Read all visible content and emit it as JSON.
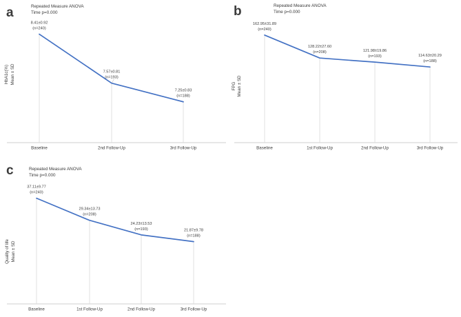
{
  "figure": {
    "description": "Repeated Measure ANOVA line charts",
    "colors": {
      "line": "#4472c4",
      "dropline": "#d9d9d9",
      "axis": "#bfbfbf",
      "text": "#3b3b3b",
      "letter": "#111111"
    }
  },
  "chart_data": [
    {
      "id": "a",
      "type": "line",
      "panel_letter": "a",
      "title": "Repeated Measure ANOVA",
      "subtitle": "Time p=0.000",
      "ylabel_lines": [
        "HbA1c(%)",
        "Mean ± SD"
      ],
      "categories": [
        "Baseline",
        "2nd Follow-Up",
        "3rd Follow-Up"
      ],
      "series": [
        {
          "name": "HbA1c(%) Mean",
          "values": [
            8.41,
            7.57,
            7.25
          ]
        }
      ],
      "sd_values": [
        0.92,
        0.81,
        0.83
      ],
      "n_values": [
        240,
        193,
        188
      ],
      "point_labels": [
        "8.41±0.92",
        "7.57±0.81",
        "7.25±0.83"
      ],
      "n_labels": [
        "(n=240)",
        "(n=193)",
        "(n=188)"
      ],
      "ylim": [
        6.55,
        8.7
      ],
      "grid": false,
      "legend": false
    },
    {
      "id": "b",
      "type": "line",
      "panel_letter": "b",
      "title": "Repeated Measure ANOVA",
      "subtitle": "Time p=0.000",
      "ylabel_lines": [
        "FPG",
        "Mean ± SD"
      ],
      "categories": [
        "Baseline",
        "1st Follow-Up",
        "2nd Follow-Up",
        "3rd Follow-Up"
      ],
      "series": [
        {
          "name": "FPG Mean",
          "values": [
            162.95,
            128.22,
            121.98,
            114.63
          ]
        }
      ],
      "sd_values": [
        31.89,
        27.6,
        19.86,
        20.29
      ],
      "n_values": [
        240,
        208,
        193,
        188
      ],
      "point_labels": [
        "162.95±31.89",
        "128.22±27.60",
        "121.98±19.86",
        "114.63±20.29"
      ],
      "n_labels": [
        "(n=240)",
        "(n=208)",
        "(n=193)",
        "(n=188)"
      ],
      "ylim": [
        0,
        190
      ],
      "grid": false,
      "legend": false
    },
    {
      "id": "c",
      "type": "line",
      "panel_letter": "c",
      "title": "Repeated Measure ANOVA",
      "subtitle": "Time p=0.000",
      "ylabel_lines": [
        "Quality of life",
        "Mean ± SD"
      ],
      "categories": [
        "Baseline",
        "1st Follow-Up",
        "2nd Follow-Up",
        "3rd Follow-Up"
      ],
      "series": [
        {
          "name": "Quality of life Mean",
          "values": [
            37.11,
            29.34,
            24.23,
            21.87
          ]
        }
      ],
      "sd_values": [
        9.77,
        13.73,
        13.53,
        9.78
      ],
      "n_values": [
        240,
        208,
        193,
        188
      ],
      "point_labels": [
        "37.11±9.77",
        "29.34±13.73",
        "24.23±13.53",
        "21.87±9.78"
      ],
      "n_labels": [
        "(n=240)",
        "(n=208)",
        "(n=193)",
        "(n=188)"
      ],
      "ylim": [
        0,
        45
      ],
      "grid": false,
      "legend": false
    }
  ]
}
